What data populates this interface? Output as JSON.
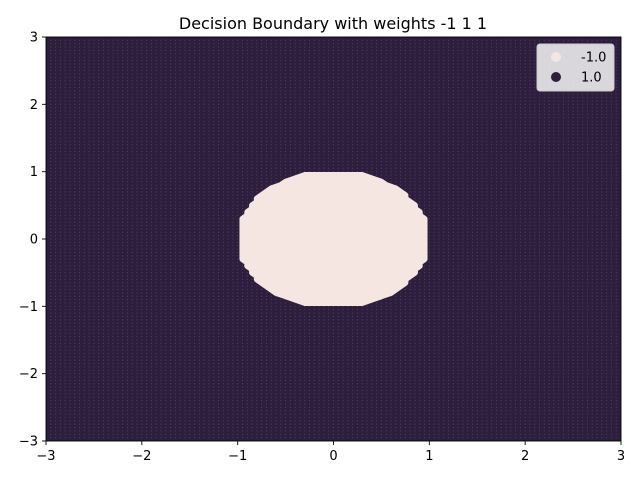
{
  "chart_data": {
    "type": "scatter",
    "title": "Decision Boundary with weights -1 1 1",
    "xlabel": "",
    "ylabel": "",
    "xlim": [
      -3,
      3
    ],
    "ylim": [
      -3,
      3
    ],
    "xticks": [
      -3,
      -2,
      -1,
      0,
      1,
      2,
      3
    ],
    "yticks": [
      -3,
      -2,
      -1,
      0,
      1,
      2,
      3
    ],
    "xtick_labels": [
      "−3",
      "−2",
      "−1",
      "0",
      "1",
      "2",
      "3"
    ],
    "ytick_labels": [
      "−3",
      "−2",
      "−1",
      "0",
      "1",
      "2",
      "3"
    ],
    "grid": false,
    "legend": {
      "position": "top-right",
      "entries": [
        {
          "label": "-1.0",
          "color": "#f6e6e2"
        },
        {
          "label": "1.0",
          "color": "#2d1e3e"
        }
      ]
    },
    "series": [
      {
        "class": "-1.0",
        "region": "inside x^2 + y^2 < 1",
        "color": "#f6e6e2"
      },
      {
        "class": "1.0",
        "region": "outside x^2 + y^2 >= 1",
        "color": "#2d1e3e"
      }
    ],
    "grid_points": {
      "x_range": [
        -3,
        3
      ],
      "y_range": [
        -3,
        3
      ],
      "step": 0.05
    },
    "decision_rule": "sign(x^2 + y^2 - 1)"
  }
}
